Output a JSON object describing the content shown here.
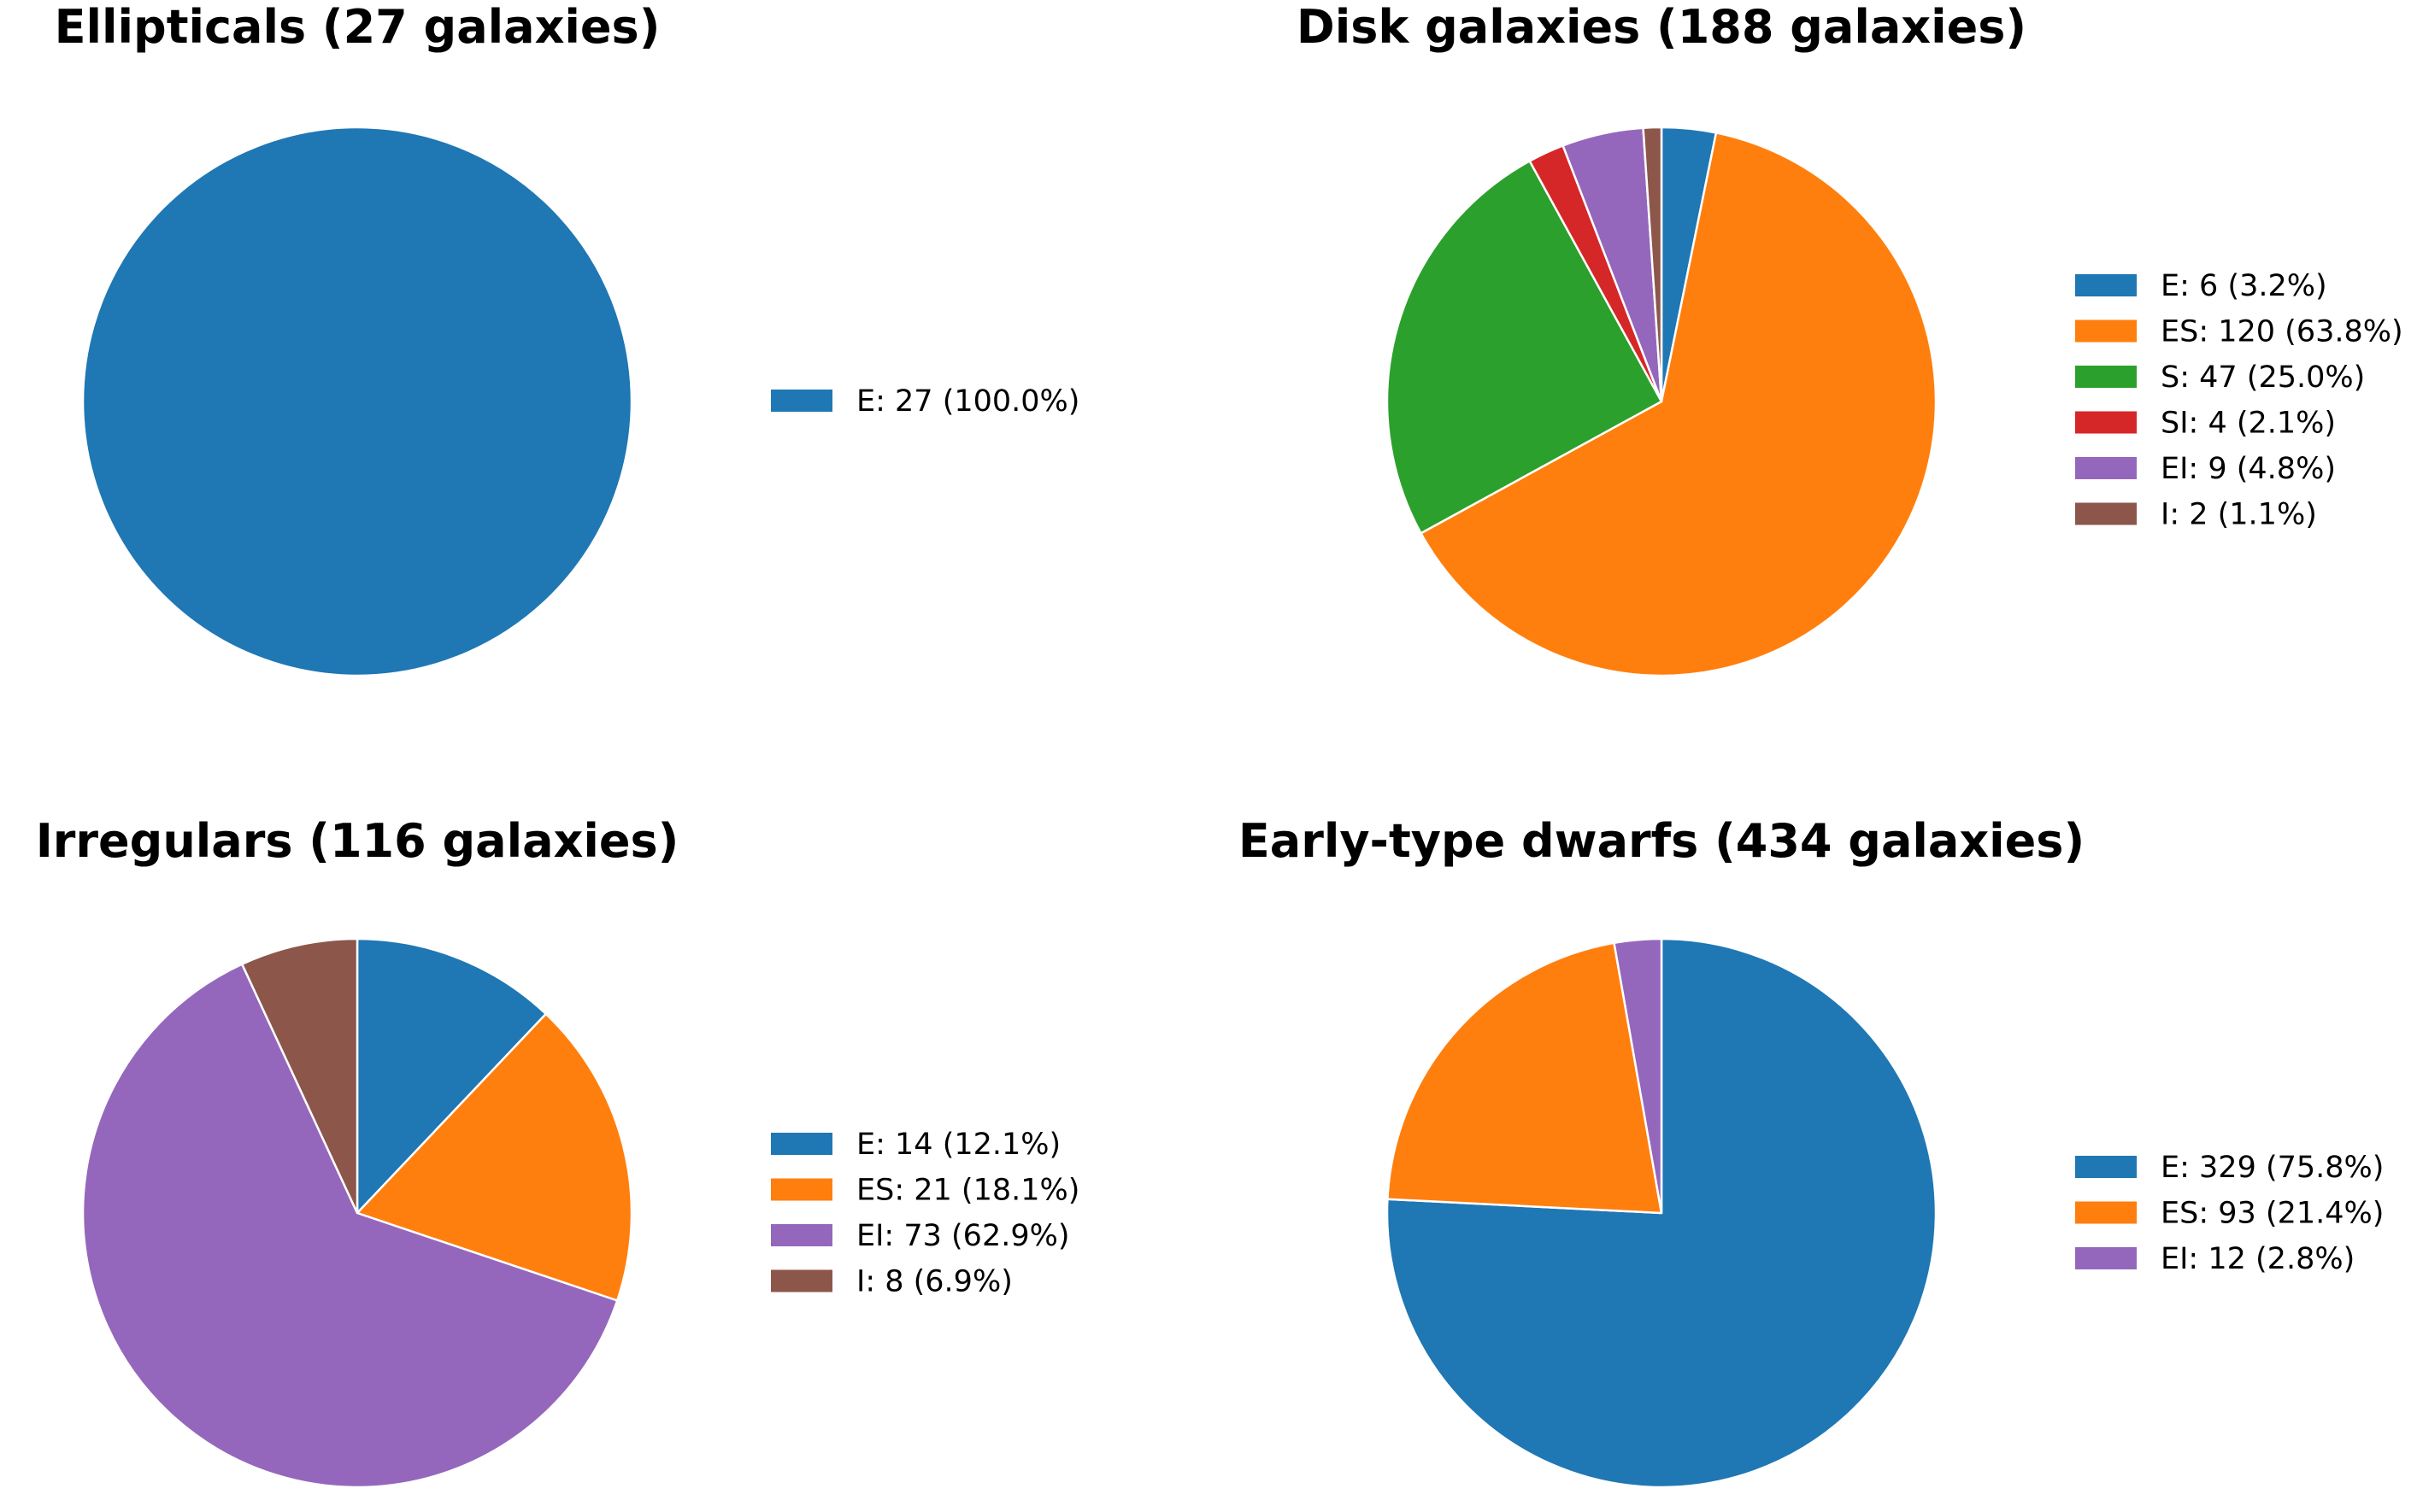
{
  "chart_data": [
    {
      "type": "pie",
      "title": "Ellipticals (27 galaxies)",
      "start_angle": 90,
      "direction": "clockwise",
      "slices": [
        {
          "label": "E",
          "value": 27,
          "percent": 100.0,
          "color": "#1f77b4",
          "legend": "E: 27 (100.0%)"
        }
      ]
    },
    {
      "type": "pie",
      "title": "Disk galaxies (188 galaxies)",
      "start_angle": 90,
      "direction": "clockwise",
      "slices": [
        {
          "label": "E",
          "value": 6,
          "percent": 3.2,
          "color": "#1f77b4",
          "legend": "E: 6 (3.2%)"
        },
        {
          "label": "ES",
          "value": 120,
          "percent": 63.8,
          "color": "#ff7f0e",
          "legend": "ES: 120 (63.8%)"
        },
        {
          "label": "S",
          "value": 47,
          "percent": 25.0,
          "color": "#2ca02c",
          "legend": "S: 47 (25.0%)"
        },
        {
          "label": "SI",
          "value": 4,
          "percent": 2.1,
          "color": "#d62728",
          "legend": "SI: 4 (2.1%)"
        },
        {
          "label": "EI",
          "value": 9,
          "percent": 4.8,
          "color": "#9467bd",
          "legend": "EI: 9 (4.8%)"
        },
        {
          "label": "I",
          "value": 2,
          "percent": 1.1,
          "color": "#8c564b",
          "legend": "I: 2 (1.1%)"
        }
      ]
    },
    {
      "type": "pie",
      "title": "Irregulars (116 galaxies)",
      "start_angle": 90,
      "direction": "clockwise",
      "slices": [
        {
          "label": "E",
          "value": 14,
          "percent": 12.1,
          "color": "#1f77b4",
          "legend": "E: 14 (12.1%)"
        },
        {
          "label": "ES",
          "value": 21,
          "percent": 18.1,
          "color": "#ff7f0e",
          "legend": "ES: 21 (18.1%)"
        },
        {
          "label": "EI",
          "value": 73,
          "percent": 62.9,
          "color": "#9467bd",
          "legend": "EI: 73 (62.9%)"
        },
        {
          "label": "I",
          "value": 8,
          "percent": 6.9,
          "color": "#8c564b",
          "legend": "I: 8 (6.9%)"
        }
      ]
    },
    {
      "type": "pie",
      "title": "Early-type dwarfs (434 galaxies)",
      "start_angle": 90,
      "direction": "clockwise",
      "slices": [
        {
          "label": "E",
          "value": 329,
          "percent": 75.8,
          "color": "#1f77b4",
          "legend": "E: 329 (75.8%)"
        },
        {
          "label": "ES",
          "value": 93,
          "percent": 21.4,
          "color": "#ff7f0e",
          "legend": "ES: 93 (21.4%)"
        },
        {
          "label": "EI",
          "value": 12,
          "percent": 2.8,
          "color": "#9467bd",
          "legend": "EI: 12 (2.8%)"
        }
      ]
    }
  ]
}
